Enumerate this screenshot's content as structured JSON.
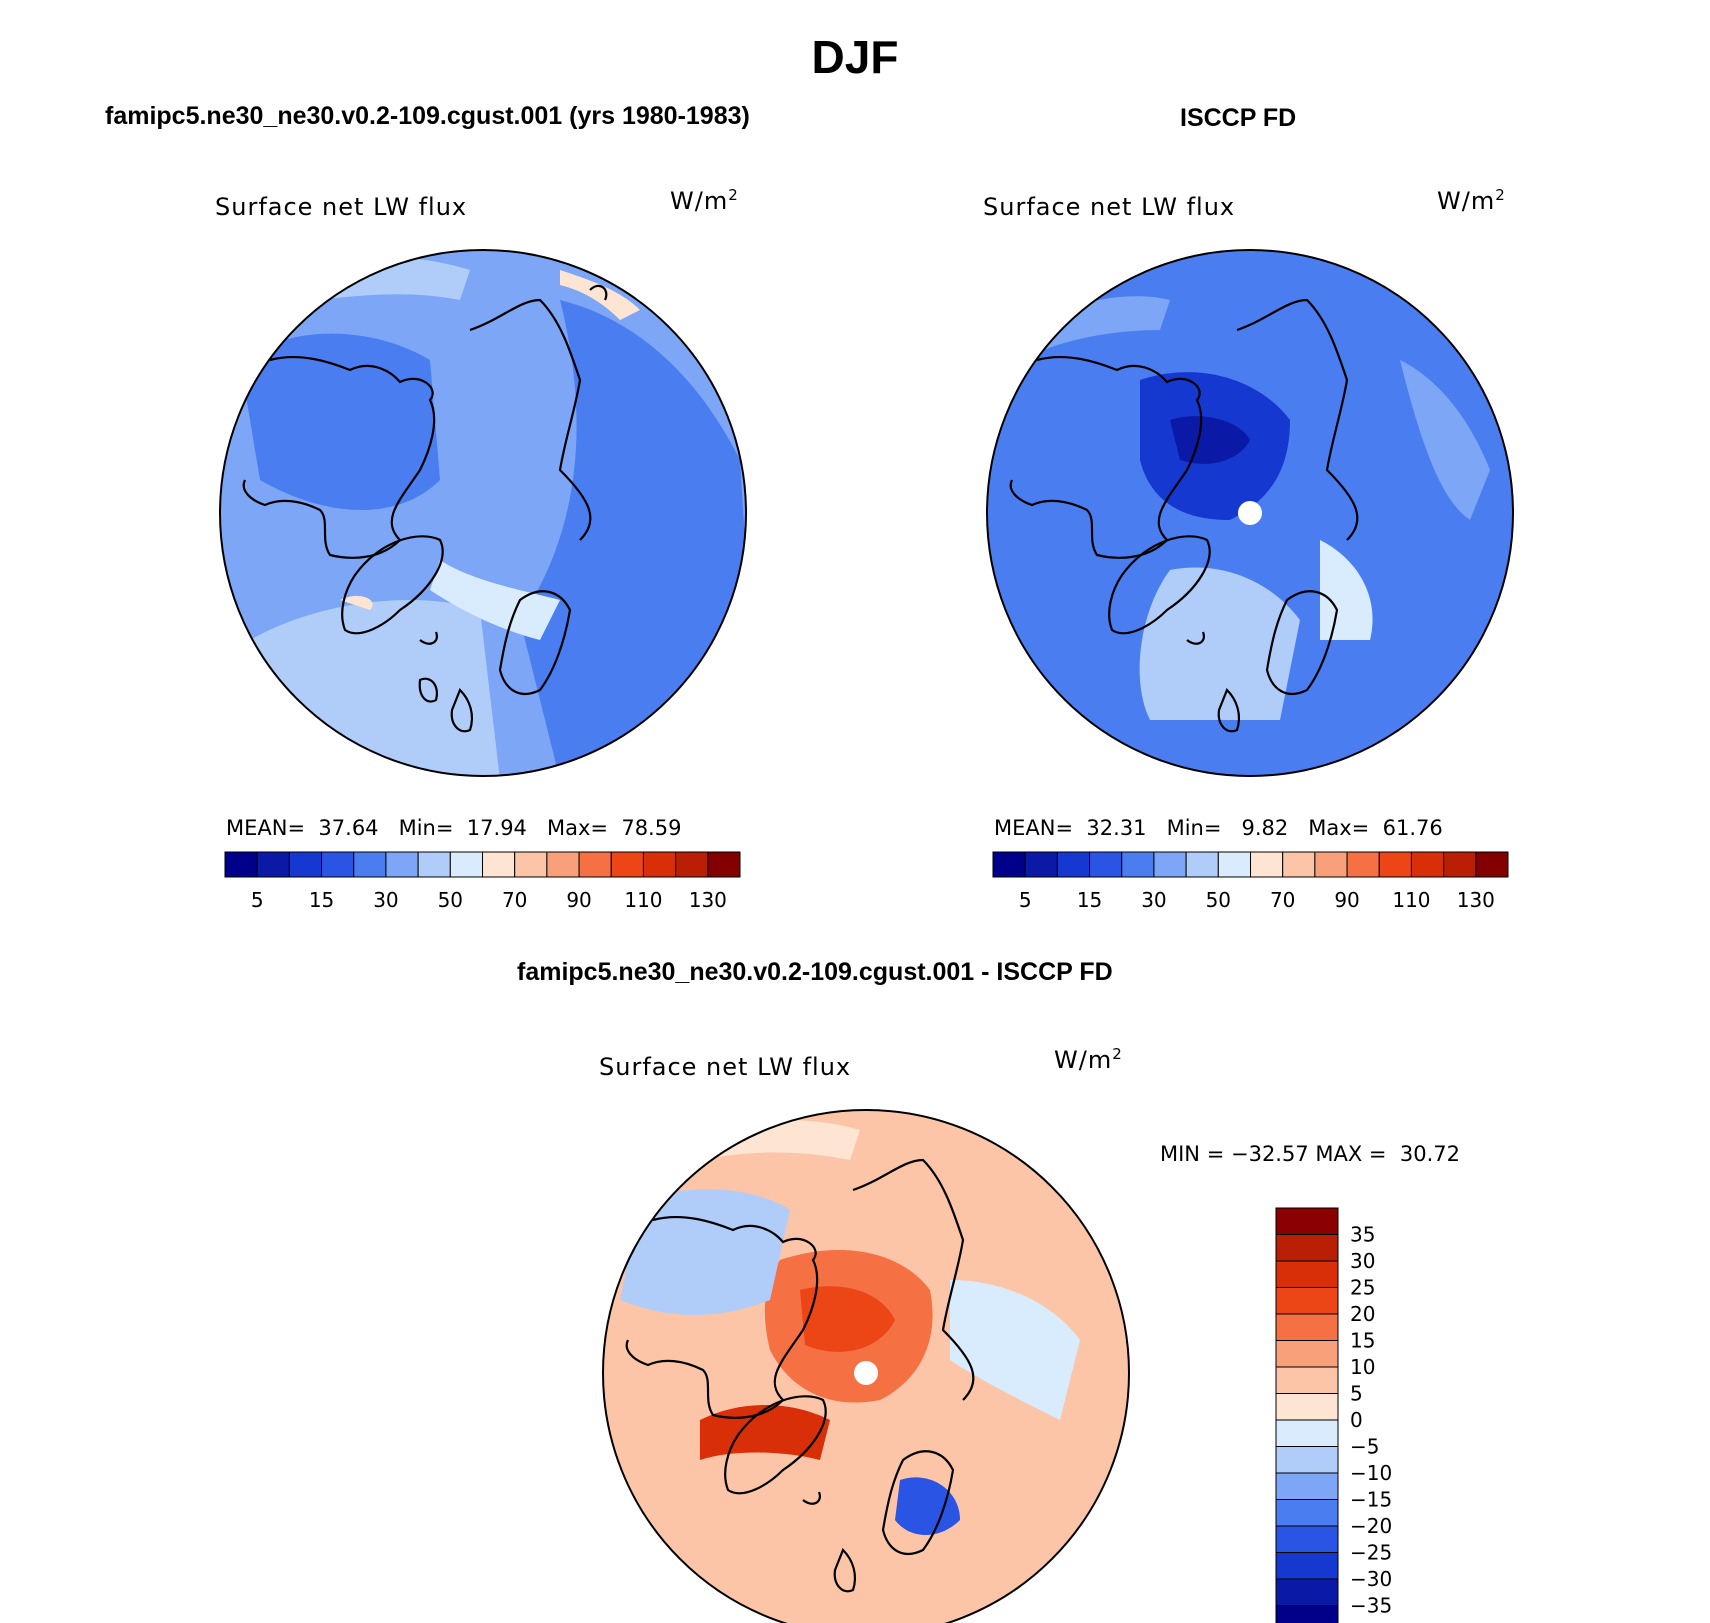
{
  "figure": {
    "title": "DJF",
    "diff_title": "famipc5.ne30_ne30.v0.2-109.cgust.001 - ISCCP FD"
  },
  "panels": [
    {
      "title": "famipc5.ne30_ne30.v0.2-109.cgust.001 (yrs 1980-1983)",
      "field": "Surface net LW flux",
      "units": "W/m",
      "units_sup": "2",
      "stats": {
        "mean_label": "MEAN=",
        "mean": "37.64",
        "min_label": "Min=",
        "min": "17.94",
        "max_label": "Max=",
        "max": "78.59"
      }
    },
    {
      "title": "ISCCP FD",
      "field": "Surface net LW flux",
      "units": "W/m",
      "units_sup": "2",
      "stats": {
        "mean_label": "MEAN=",
        "mean": "32.31",
        "min_label": "Min=",
        "min": "9.82",
        "max_label": "Max=",
        "max": "61.76"
      }
    },
    {
      "title": "famipc5.ne30_ne30.v0.2-109.cgust.001 - ISCCP FD",
      "field": "Surface net LW flux",
      "units": "W/m",
      "units_sup": "2",
      "stats": {
        "min_label": "MIN =",
        "min": "−32.57",
        "max_label": "MAX =",
        "max": "30.72"
      }
    }
  ],
  "colorbars": {
    "abs": {
      "colors": [
        "#00008b",
        "#0a1aa6",
        "#1438d0",
        "#2a55e4",
        "#4a7ef0",
        "#7da6f6",
        "#b0cdfa",
        "#d9ecfd",
        "#fde4d3",
        "#fcc5a7",
        "#f7a07a",
        "#f57042",
        "#ec4516",
        "#d82f08",
        "#b81f05",
        "#820000"
      ],
      "labels": [
        "5",
        "15",
        "30",
        "50",
        "70",
        "90",
        "110",
        "130"
      ]
    },
    "diff": {
      "colors_top_to_bottom": [
        "#8b0000",
        "#b81f05",
        "#d82f08",
        "#ec4516",
        "#f57042",
        "#f7a07a",
        "#fcc5a7",
        "#fde4d3",
        "#d9ecfd",
        "#b0cdfa",
        "#7da6f6",
        "#4a7ef0",
        "#2a55e4",
        "#1438d0",
        "#0a1aa6",
        "#00008b"
      ],
      "labels": [
        "35",
        "30",
        "25",
        "20",
        "15",
        "10",
        "5",
        "0",
        "−5",
        "−10",
        "−15",
        "−20",
        "−25",
        "−30",
        "−35"
      ]
    }
  },
  "map_colors": {
    "model_base": "#7da6f6",
    "obs_base": "#4a7ef0",
    "diff_base": "#fcc5a7",
    "coastline": "#000000"
  }
}
